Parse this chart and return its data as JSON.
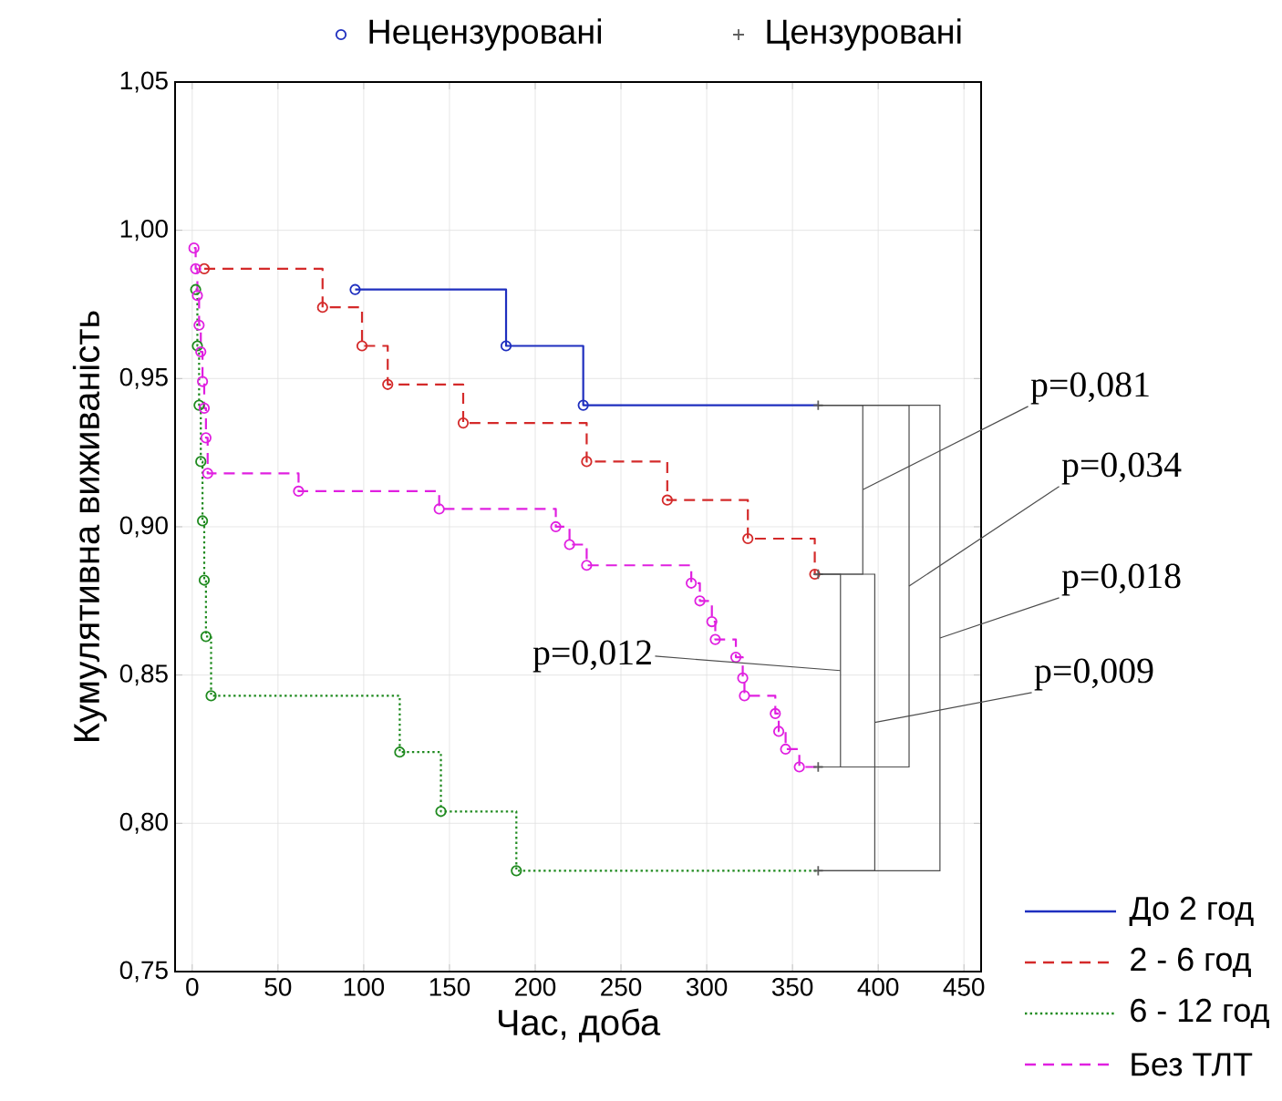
{
  "chart_data": {
    "type": "step",
    "xlabel": "Час, доба",
    "ylabel": "Кумулятивна виживаність",
    "xlim": [
      -10,
      460
    ],
    "ylim": [
      0.75,
      1.05
    ],
    "xticks": [
      0,
      50,
      100,
      150,
      200,
      250,
      300,
      350,
      400,
      450
    ],
    "yticks": [
      {
        "value": 0.75,
        "label": "0,75"
      },
      {
        "value": 0.8,
        "label": "0,80"
      },
      {
        "value": 0.85,
        "label": "0,85"
      },
      {
        "value": 0.9,
        "label": "0,90"
      },
      {
        "value": 0.95,
        "label": "0,95"
      },
      {
        "value": 1.0,
        "label": "1,00"
      },
      {
        "value": 1.05,
        "label": "1,05"
      }
    ],
    "grid": true,
    "legend": "bottom right",
    "annotations": [
      "p=0,081",
      "p=0,034",
      "p=0,018",
      "p=0,009",
      "p=0,012"
    ],
    "series": [
      {
        "name": "До 2 год",
        "color": "#1f2fbf",
        "line_style": "solid",
        "x": [
          95,
          183,
          228,
          365
        ],
        "values": [
          0.98,
          0.961,
          0.941,
          0.941
        ]
      },
      {
        "name": "2 - 6 год",
        "color": "#d42a2a",
        "line_style": "dashed",
        "x": [
          7,
          76,
          99,
          114,
          158,
          230,
          277,
          324,
          363,
          365
        ],
        "values": [
          0.987,
          0.974,
          0.961,
          0.948,
          0.935,
          0.922,
          0.909,
          0.896,
          0.884,
          0.884
        ]
      },
      {
        "name": "6 - 12 год",
        "color": "#1f8a1f",
        "line_style": "dotted",
        "x": [
          2,
          3,
          4,
          5,
          6,
          7,
          8,
          11,
          121,
          145,
          189,
          365
        ],
        "values": [
          0.98,
          0.961,
          0.941,
          0.922,
          0.902,
          0.882,
          0.863,
          0.843,
          0.824,
          0.804,
          0.784,
          0.784
        ]
      },
      {
        "name": "Без ТЛТ",
        "color": "#e020e0",
        "line_style": "dashed",
        "x": [
          1,
          2,
          3,
          4,
          5,
          6,
          7,
          8,
          9,
          62,
          144,
          212,
          220,
          230,
          291,
          296,
          303,
          305,
          317,
          321,
          322,
          340,
          342,
          346,
          354,
          365
        ],
        "values": [
          0.994,
          0.987,
          0.978,
          0.968,
          0.959,
          0.949,
          0.94,
          0.93,
          0.918,
          0.912,
          0.906,
          0.9,
          0.894,
          0.887,
          0.881,
          0.875,
          0.868,
          0.862,
          0.856,
          0.849,
          0.843,
          0.837,
          0.831,
          0.825,
          0.819,
          0.819
        ]
      },
      {
        "name": "Нецензуровані",
        "type": "scatter",
        "marker": "circle",
        "color": "#1f2fbf",
        "x": [
          95,
          183,
          228,
          7,
          76,
          99,
          114,
          158,
          230,
          277,
          324,
          363,
          2,
          3,
          4,
          5,
          6,
          7,
          8,
          11,
          121,
          145,
          189,
          1,
          2,
          3,
          4,
          5,
          6,
          7,
          8,
          9,
          62,
          144,
          212,
          220,
          230,
          291,
          296,
          303,
          305,
          317,
          321,
          322,
          340,
          342,
          346,
          354
        ],
        "values": [
          0.98,
          0.961,
          0.941,
          0.987,
          0.974,
          0.961,
          0.948,
          0.935,
          0.922,
          0.909,
          0.896,
          0.884,
          0.98,
          0.961,
          0.941,
          0.922,
          0.902,
          0.882,
          0.863,
          0.843,
          0.824,
          0.804,
          0.784,
          0.994,
          0.987,
          0.978,
          0.968,
          0.959,
          0.949,
          0.94,
          0.93,
          0.918,
          0.912,
          0.906,
          0.9,
          0.894,
          0.887,
          0.881,
          0.875,
          0.868,
          0.862,
          0.856,
          0.849,
          0.843,
          0.837,
          0.831,
          0.825,
          0.819
        ],
        "colors": [
          "#1f2fbf",
          "#1f2fbf",
          "#1f2fbf",
          "#d42a2a",
          "#d42a2a",
          "#d42a2a",
          "#d42a2a",
          "#d42a2a",
          "#d42a2a",
          "#d42a2a",
          "#d42a2a",
          "#d42a2a",
          "#1f8a1f",
          "#1f8a1f",
          "#1f8a1f",
          "#1f8a1f",
          "#1f8a1f",
          "#1f8a1f",
          "#1f8a1f",
          "#1f8a1f",
          "#1f8a1f",
          "#1f8a1f",
          "#1f8a1f",
          "#e020e0",
          "#e020e0",
          "#e020e0",
          "#e020e0",
          "#e020e0",
          "#e020e0",
          "#e020e0",
          "#e020e0",
          "#e020e0",
          "#e020e0",
          "#e020e0",
          "#e020e0",
          "#e020e0",
          "#e020e0",
          "#e020e0",
          "#e020e0",
          "#e020e0",
          "#e020e0",
          "#e020e0",
          "#e020e0",
          "#e020e0",
          "#e020e0",
          "#e020e0",
          "#e020e0",
          "#e020e0"
        ]
      },
      {
        "name": "Цензуровані",
        "type": "scatter",
        "marker": "cross",
        "color": "#606060",
        "x": [
          365,
          365,
          365,
          365
        ],
        "values": [
          0.941,
          0.884,
          0.784,
          0.819
        ]
      }
    ]
  }
}
